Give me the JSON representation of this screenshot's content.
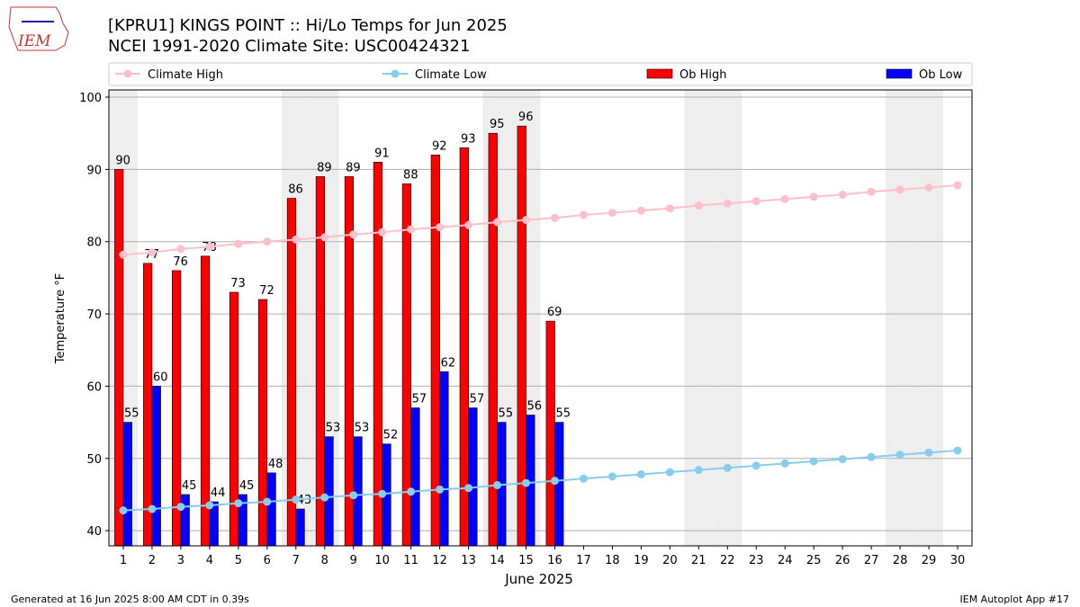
{
  "chart_data": {
    "type": "bar",
    "title": "[KPRU1] KINGS POINT :: Hi/Lo Temps for Jun 2025",
    "subtitle": "NCEI 1991-2020 Climate Site: USC00424321",
    "logo_text": "IEM",
    "x_label": "June 2025",
    "y_label": "Temperature °F",
    "footer_left": "Generated at 16 Jun 2025 8:00 AM CDT in 0.39s",
    "footer_right": "IEM Autoplot App #17",
    "x": [
      1,
      2,
      3,
      4,
      5,
      6,
      7,
      8,
      9,
      10,
      11,
      12,
      13,
      14,
      15,
      16,
      17,
      18,
      19,
      20,
      21,
      22,
      23,
      24,
      25,
      26,
      27,
      28,
      29,
      30
    ],
    "xlim": [
      0.5,
      30.5
    ],
    "xticks": [
      1,
      2,
      3,
      4,
      5,
      6,
      7,
      8,
      9,
      10,
      11,
      12,
      13,
      14,
      15,
      16,
      17,
      18,
      19,
      20,
      21,
      22,
      23,
      24,
      25,
      26,
      27,
      28,
      29,
      30
    ],
    "ylim": [
      37.9,
      101
    ],
    "yticks": [
      40,
      50,
      60,
      70,
      80,
      90,
      100
    ],
    "grid": true,
    "shaded_days": [
      1,
      7,
      8,
      14,
      15,
      21,
      22,
      28,
      29
    ],
    "shade_color": "#eeeeee",
    "series": [
      {
        "name": "Climate High",
        "type": "line",
        "color": "#ffc0cb",
        "values": [
          78.2,
          78.5,
          79.0,
          79.3,
          79.7,
          80.0,
          80.3,
          80.6,
          81.0,
          81.3,
          81.7,
          82.0,
          82.3,
          82.7,
          83.0,
          83.3,
          83.7,
          84.0,
          84.3,
          84.6,
          85.0,
          85.3,
          85.6,
          85.9,
          86.2,
          86.5,
          86.9,
          87.2,
          87.5,
          87.8
        ]
      },
      {
        "name": "Climate Low",
        "type": "line",
        "color": "#87ceeb",
        "values": [
          42.8,
          43.0,
          43.3,
          43.5,
          43.8,
          44.0,
          44.3,
          44.6,
          44.9,
          45.1,
          45.4,
          45.7,
          45.9,
          46.3,
          46.6,
          46.9,
          47.2,
          47.5,
          47.8,
          48.1,
          48.4,
          48.7,
          49.0,
          49.3,
          49.6,
          49.9,
          50.2,
          50.5,
          50.8,
          51.1
        ]
      },
      {
        "name": "Ob High",
        "type": "bar",
        "color": "#ff0000",
        "values": [
          90,
          77,
          76,
          78,
          73,
          72,
          86,
          89,
          89,
          91,
          88,
          92,
          93,
          95,
          96,
          69,
          null,
          null,
          null,
          null,
          null,
          null,
          null,
          null,
          null,
          null,
          null,
          null,
          null,
          null
        ]
      },
      {
        "name": "Ob Low",
        "type": "bar",
        "color": "#0000ff",
        "values": [
          55,
          60,
          45,
          44,
          45,
          48,
          43,
          53,
          53,
          52,
          57,
          62,
          57,
          55,
          56,
          55,
          null,
          null,
          null,
          null,
          null,
          null,
          null,
          null,
          null,
          null,
          null,
          null,
          null,
          null
        ]
      }
    ]
  }
}
